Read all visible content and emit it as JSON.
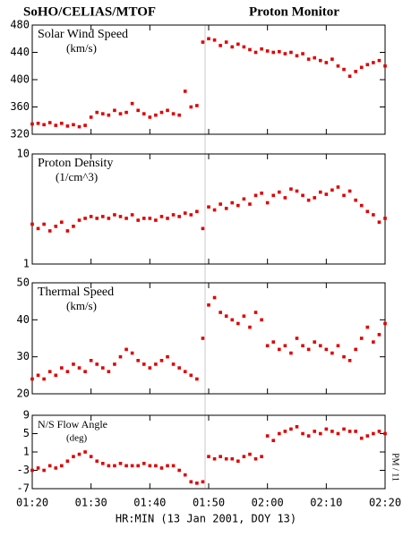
{
  "header": {
    "left": "SoHO/CELIAS/MTOF",
    "right": "Proton Monitor"
  },
  "xlabel": "HR:MIN (13 Jan 2001, DOY 13)",
  "side_label": "PM / 11",
  "chart_data": [
    {
      "type": "scatter",
      "title": "Solar Wind Speed",
      "unit": "(km/s)",
      "color": "#e00000",
      "x": [
        80,
        81,
        82,
        83,
        84,
        85,
        86,
        87,
        88,
        89,
        90,
        91,
        92,
        93,
        94,
        95,
        96,
        97,
        98,
        99,
        100,
        101,
        102,
        103,
        104,
        105,
        106,
        107,
        108,
        109,
        110,
        111,
        112,
        113,
        114,
        115,
        116,
        117,
        118,
        119,
        120,
        121,
        122,
        123,
        124,
        125,
        126,
        127,
        128,
        129,
        130,
        131,
        132,
        133,
        134,
        135,
        136,
        137,
        138,
        139,
        140
      ],
      "values": [
        335,
        336,
        334,
        337,
        333,
        336,
        332,
        334,
        331,
        333,
        345,
        352,
        350,
        348,
        355,
        350,
        352,
        365,
        355,
        350,
        345,
        348,
        352,
        355,
        350,
        348,
        383,
        360,
        362,
        455,
        460,
        458,
        450,
        455,
        448,
        452,
        448,
        444,
        440,
        445,
        442,
        440,
        441,
        438,
        440,
        435,
        438,
        430,
        432,
        428,
        425,
        430,
        420,
        415,
        405,
        412,
        418,
        422,
        425,
        428,
        420
      ],
      "xlim": [
        80,
        140
      ],
      "ylim": [
        320,
        480
      ],
      "yticks": [
        320,
        360,
        400,
        440,
        480
      ]
    },
    {
      "type": "scatter",
      "title": "Proton Density",
      "unit": "(1/cm^3)",
      "color": "#e00000",
      "log": true,
      "x": [
        80,
        81,
        82,
        83,
        84,
        85,
        86,
        87,
        88,
        89,
        90,
        91,
        92,
        93,
        94,
        95,
        96,
        97,
        98,
        99,
        100,
        101,
        102,
        103,
        104,
        105,
        106,
        107,
        108,
        109,
        110,
        111,
        112,
        113,
        114,
        115,
        116,
        117,
        118,
        119,
        120,
        121,
        122,
        123,
        124,
        125,
        126,
        127,
        128,
        129,
        130,
        131,
        132,
        133,
        134,
        135,
        136,
        137,
        138,
        139,
        140
      ],
      "values": [
        2.3,
        2.1,
        2.3,
        2.0,
        2.2,
        2.4,
        2.0,
        2.2,
        2.5,
        2.6,
        2.7,
        2.6,
        2.7,
        2.6,
        2.8,
        2.7,
        2.6,
        2.8,
        2.5,
        2.6,
        2.6,
        2.5,
        2.7,
        2.6,
        2.8,
        2.7,
        2.9,
        2.8,
        3.0,
        2.1,
        3.3,
        3.1,
        3.5,
        3.2,
        3.6,
        3.4,
        3.9,
        3.5,
        4.2,
        4.4,
        3.6,
        4.2,
        4.5,
        4.0,
        4.8,
        4.6,
        4.2,
        3.8,
        4.0,
        4.5,
        4.3,
        4.7,
        5.0,
        4.2,
        4.6,
        3.8,
        3.4,
        3.0,
        2.8,
        2.4,
        2.6
      ],
      "xlim": [
        80,
        140
      ],
      "ylim": [
        1,
        10
      ],
      "yticks": [
        1,
        10
      ]
    },
    {
      "type": "scatter",
      "title": "Thermal Speed",
      "unit": "(km/s)",
      "color": "#e00000",
      "x": [
        80,
        81,
        82,
        83,
        84,
        85,
        86,
        87,
        88,
        89,
        90,
        91,
        92,
        93,
        94,
        95,
        96,
        97,
        98,
        99,
        100,
        101,
        102,
        103,
        104,
        105,
        106,
        107,
        108,
        109,
        110,
        111,
        112,
        113,
        114,
        115,
        116,
        117,
        118,
        119,
        120,
        121,
        122,
        123,
        124,
        125,
        126,
        127,
        128,
        129,
        130,
        131,
        132,
        133,
        134,
        135,
        136,
        137,
        138,
        139,
        140
      ],
      "values": [
        24,
        25,
        24,
        26,
        25,
        27,
        26,
        28,
        27,
        26,
        29,
        28,
        27,
        26,
        28,
        30,
        32,
        31,
        29,
        28,
        27,
        28,
        29,
        30,
        28,
        27,
        26,
        25,
        24,
        35,
        44,
        46,
        42,
        41,
        40,
        39,
        41,
        38,
        42,
        40,
        33,
        34,
        32,
        33,
        31,
        35,
        33,
        32,
        34,
        33,
        32,
        31,
        33,
        30,
        29,
        32,
        35,
        38,
        34,
        36,
        39
      ],
      "xlim": [
        80,
        140
      ],
      "ylim": [
        20,
        50
      ],
      "yticks": [
        20,
        30,
        40,
        50
      ]
    },
    {
      "type": "scatter",
      "title": "N/S Flow Angle",
      "unit": "(deg)",
      "color": "#e00000",
      "x": [
        80,
        81,
        82,
        83,
        84,
        85,
        86,
        87,
        88,
        89,
        90,
        91,
        92,
        93,
        94,
        95,
        96,
        97,
        98,
        99,
        100,
        101,
        102,
        103,
        104,
        105,
        106,
        107,
        108,
        109,
        110,
        111,
        112,
        113,
        114,
        115,
        116,
        117,
        118,
        119,
        120,
        121,
        122,
        123,
        124,
        125,
        126,
        127,
        128,
        129,
        130,
        131,
        132,
        133,
        134,
        135,
        136,
        137,
        138,
        139,
        140
      ],
      "values": [
        -3,
        -2.5,
        -3,
        -2,
        -2.5,
        -2,
        -1,
        0,
        0.5,
        1,
        0,
        -1,
        -1.5,
        -2,
        -2,
        -1.5,
        -2,
        -2,
        -2,
        -1.5,
        -2,
        -2,
        -2.5,
        -2,
        -2,
        -3,
        -4,
        -5.5,
        -5.8,
        -5.5,
        0,
        -0.5,
        0,
        -0.5,
        -0.5,
        -1,
        0,
        0.5,
        -0.5,
        0,
        4.5,
        3.5,
        5,
        5.5,
        6,
        6.5,
        5,
        4.5,
        5.5,
        5,
        6,
        5.5,
        5,
        6,
        5.5,
        5.5,
        4,
        4.5,
        5,
        5.5,
        5
      ],
      "xlim": [
        80,
        140
      ],
      "ylim": [
        -7,
        9
      ],
      "yticks": [
        -7,
        -3,
        1,
        5,
        9
      ],
      "xticks": [
        {
          "value": 80,
          "label": "01:20"
        },
        {
          "value": 90,
          "label": "01:30"
        },
        {
          "value": 100,
          "label": "01:40"
        },
        {
          "value": 110,
          "label": "01:50"
        },
        {
          "value": 120,
          "label": "02:00"
        },
        {
          "value": 130,
          "label": "02:10"
        },
        {
          "value": 140,
          "label": "02:20"
        }
      ]
    }
  ]
}
